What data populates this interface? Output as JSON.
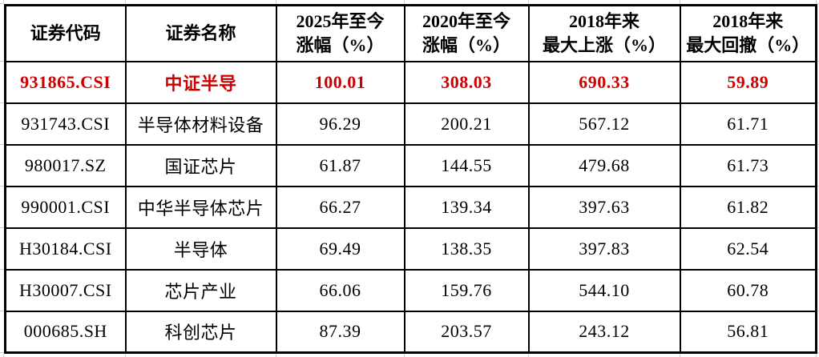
{
  "colors": {
    "highlight_red": "#cc0000",
    "text_black": "#000000",
    "border_black": "#000000",
    "background": "#ffffff",
    "gridline_gray": "#cfcfcf"
  },
  "table": {
    "columns": [
      {
        "label": "证券代码"
      },
      {
        "label": "证券名称"
      },
      {
        "label": "2025年至今\n涨幅（%）"
      },
      {
        "label": "2020年至今\n涨幅（%）"
      },
      {
        "label": "2018年来\n最大上涨（%）"
      },
      {
        "label": "2018年来\n最大回撤（%）"
      }
    ],
    "rows": [
      {
        "code": "931865.CSI",
        "name": "中证半导",
        "ytd2025": "100.01",
        "ytd2020": "308.03",
        "max_rise_2018": "690.33",
        "max_drawdown_2018": "59.89",
        "highlighted": true
      },
      {
        "code": "931743.CSI",
        "name": "半导体材料设备",
        "ytd2025": "96.29",
        "ytd2020": "200.21",
        "max_rise_2018": "567.12",
        "max_drawdown_2018": "61.71",
        "highlighted": false
      },
      {
        "code": "980017.SZ",
        "name": "国证芯片",
        "ytd2025": "61.87",
        "ytd2020": "144.55",
        "max_rise_2018": "479.68",
        "max_drawdown_2018": "61.73",
        "highlighted": false
      },
      {
        "code": "990001.CSI",
        "name": "中华半导体芯片",
        "ytd2025": "66.27",
        "ytd2020": "139.34",
        "max_rise_2018": "397.63",
        "max_drawdown_2018": "61.82",
        "highlighted": false
      },
      {
        "code": "H30184.CSI",
        "name": "半导体",
        "ytd2025": "69.49",
        "ytd2020": "138.35",
        "max_rise_2018": "397.83",
        "max_drawdown_2018": "62.54",
        "highlighted": false
      },
      {
        "code": "H30007.CSI",
        "name": "芯片产业",
        "ytd2025": "66.06",
        "ytd2020": "159.76",
        "max_rise_2018": "544.10",
        "max_drawdown_2018": "60.78",
        "highlighted": false
      },
      {
        "code": "000685.SH",
        "name": "科创芯片",
        "ytd2025": "87.39",
        "ytd2020": "203.57",
        "max_rise_2018": "243.12",
        "max_drawdown_2018": "56.81",
        "highlighted": false
      }
    ]
  },
  "chart_data": {
    "type": "table",
    "title": "",
    "columns": [
      "证券代码",
      "证券名称",
      "2025年至今涨幅（%）",
      "2020年至今涨幅（%）",
      "2018年来最大上涨（%）",
      "2018年来最大回撤（%）"
    ],
    "rows": [
      [
        "931865.CSI",
        "中证半导",
        100.01,
        308.03,
        690.33,
        59.89
      ],
      [
        "931743.CSI",
        "半导体材料设备",
        96.29,
        200.21,
        567.12,
        61.71
      ],
      [
        "980017.SZ",
        "国证芯片",
        61.87,
        144.55,
        479.68,
        61.73
      ],
      [
        "990001.CSI",
        "中华半导体芯片",
        66.27,
        139.34,
        397.63,
        61.82
      ],
      [
        "H30184.CSI",
        "半导体",
        69.49,
        138.35,
        397.83,
        62.54
      ],
      [
        "H30007.CSI",
        "芯片产业",
        66.06,
        159.76,
        544.1,
        60.78
      ],
      [
        "000685.SH",
        "科创芯片",
        87.39,
        203.57,
        243.12,
        56.81
      ]
    ],
    "highlighted_row_index": 0,
    "highlight_color": "#cc0000"
  }
}
